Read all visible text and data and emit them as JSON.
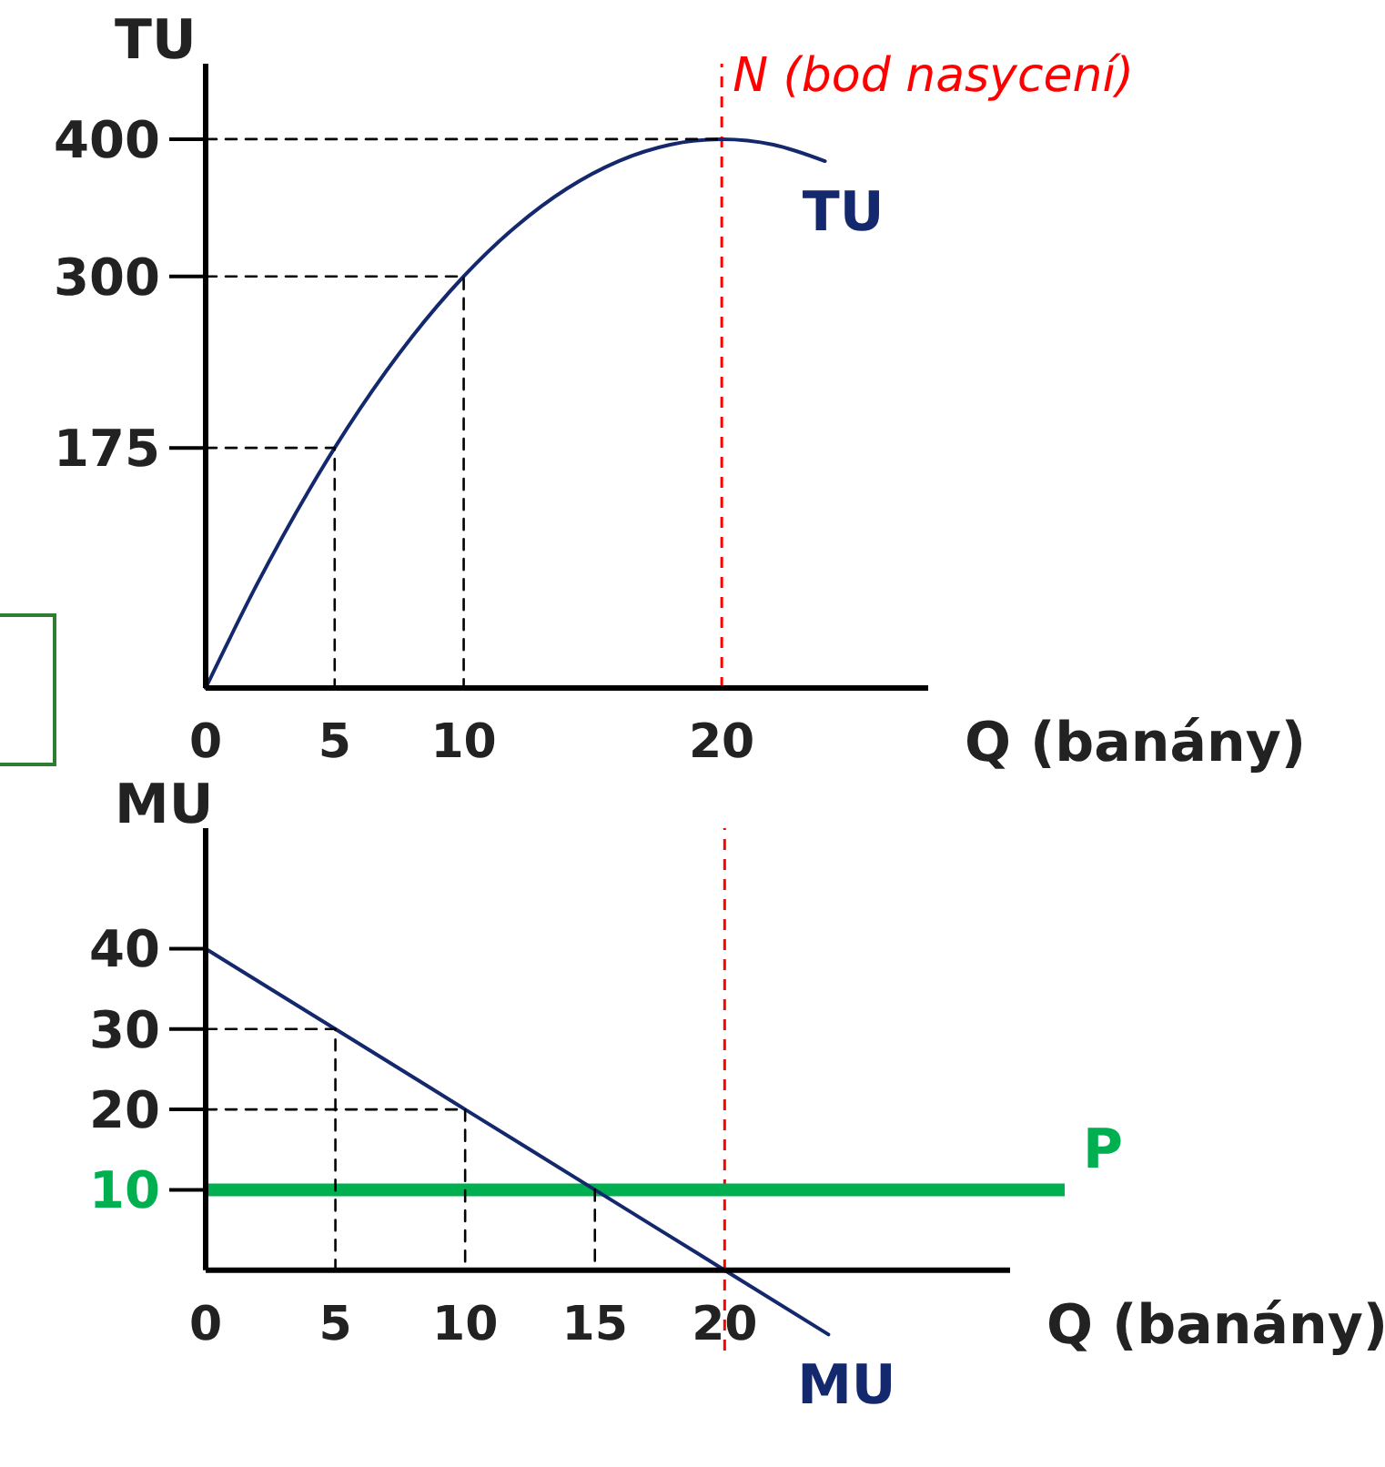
{
  "chart_data": [
    {
      "type": "line",
      "ylabel": "TU",
      "xlabel": "Q (banány)",
      "xlim": [
        0,
        28
      ],
      "ylim": [
        0,
        455
      ],
      "xticks": [
        0,
        5,
        10,
        20
      ],
      "yticks": [
        175,
        300,
        400
      ],
      "marker": "none",
      "grid": false,
      "series": [
        {
          "name": "TU",
          "color": "#14286e",
          "x": [
            0,
            2,
            4,
            5,
            6,
            8,
            10,
            12,
            14,
            16,
            18,
            20,
            22,
            24
          ],
          "values": [
            0,
            76,
            144,
            175,
            204,
            256,
            300,
            336,
            364,
            384,
            396,
            400,
            396,
            384
          ]
        },
        {
          "color": "#000000",
          "line_style": "dashed",
          "x": [
            0,
            5,
            5
          ],
          "values": [
            175,
            175,
            0
          ]
        },
        {
          "color": "#000000",
          "line_style": "dashed",
          "x": [
            0,
            10,
            10
          ],
          "values": [
            300,
            300,
            0
          ]
        },
        {
          "color": "#000000",
          "line_style": "dashed",
          "x": [
            0,
            20
          ],
          "values": [
            400,
            400
          ]
        }
      ],
      "ref_lines": [
        {
          "axis": "x",
          "value": 20,
          "label": "N (bod nasycení)",
          "color": "#ff0000",
          "line_style": "dashed"
        }
      ]
    },
    {
      "type": "line",
      "ylabel": "MU",
      "xlabel": "Q (banány)",
      "xlim": [
        0,
        31
      ],
      "ylim": [
        -10,
        55
      ],
      "xticks": [
        0,
        5,
        10,
        15,
        20
      ],
      "yticks": [
        10,
        20,
        30,
        40
      ],
      "marker": "none",
      "grid": false,
      "series": [
        {
          "name": "MU",
          "color": "#14286e",
          "x": [
            0,
            5,
            10,
            15,
            20,
            24
          ],
          "values": [
            40,
            30,
            20,
            10,
            0,
            -8
          ]
        },
        {
          "color": "#000000",
          "line_style": "dashed",
          "x": [
            0,
            5,
            5
          ],
          "values": [
            30,
            30,
            0
          ]
        },
        {
          "color": "#000000",
          "line_style": "dashed",
          "x": [
            0,
            10,
            10
          ],
          "values": [
            20,
            20,
            0
          ]
        },
        {
          "color": "#000000",
          "line_style": "dashed",
          "x": [
            15,
            15
          ],
          "values": [
            10,
            0
          ]
        }
      ],
      "ref_lines": [
        {
          "axis": "x",
          "value": 20,
          "color": "#ff0000",
          "line_style": "dashed"
        },
        {
          "axis": "y",
          "value": 10,
          "label": "P",
          "color": "#00b050",
          "line_style": "solid"
        }
      ]
    }
  ]
}
